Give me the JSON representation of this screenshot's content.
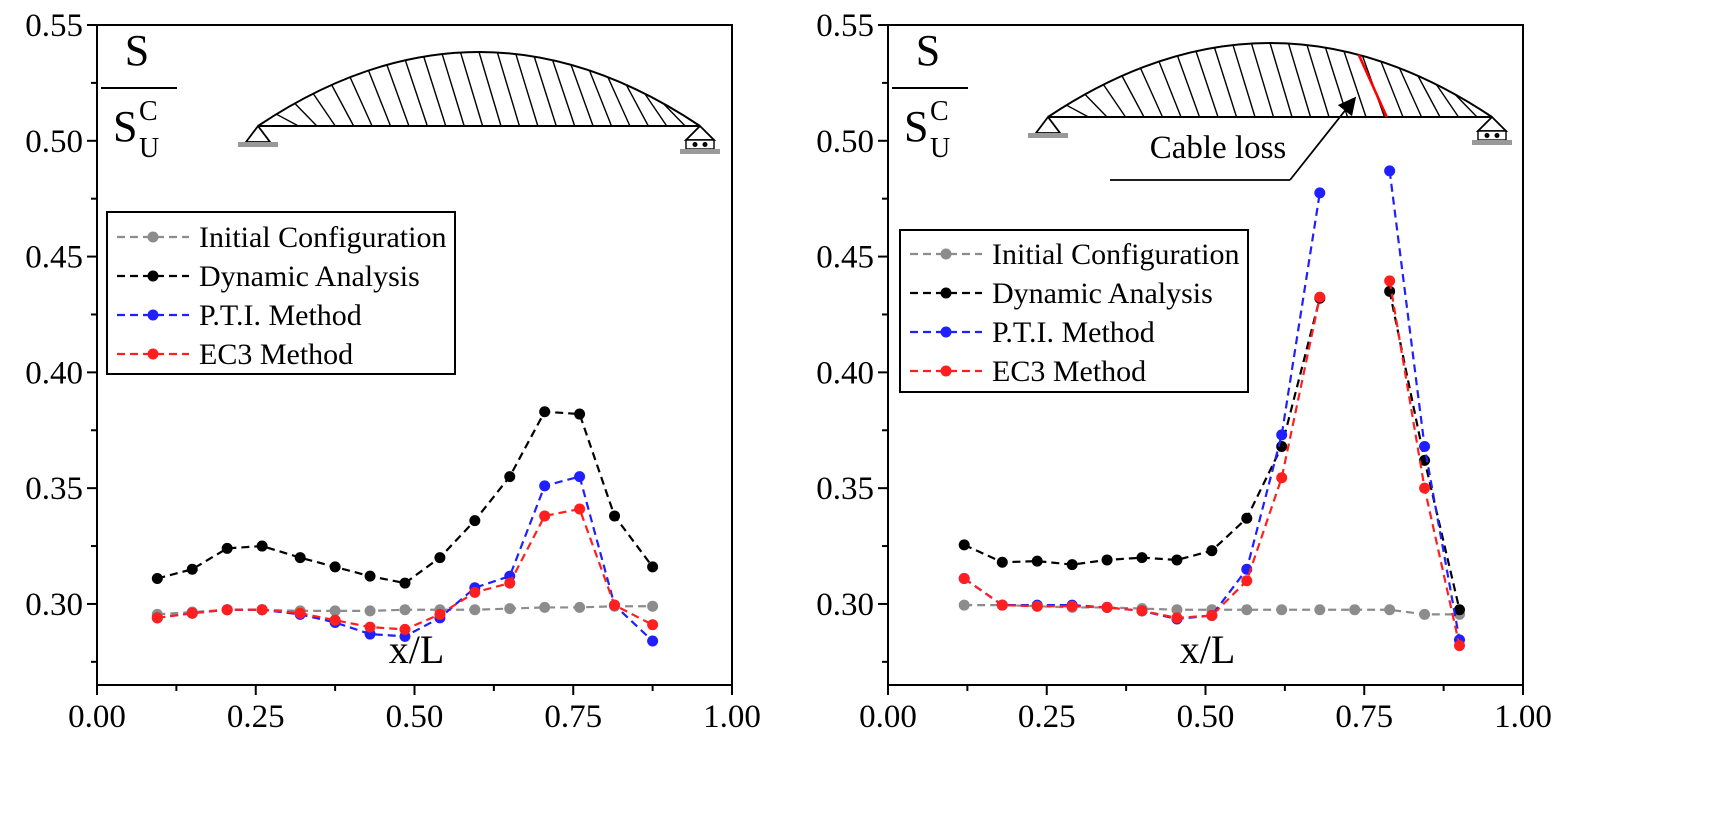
{
  "chart_data": [
    {
      "type": "line",
      "title": "",
      "xlabel": "x/L",
      "ylabel": "S / S_U^C",
      "xlim": [
        0.0,
        1.0
      ],
      "ylim": [
        0.265,
        0.55
      ],
      "x_ticks": [
        "0.00",
        "0.25",
        "0.50",
        "0.75",
        "1.00"
      ],
      "y_ticks": [
        "0.30",
        "0.35",
        "0.40",
        "0.45",
        "0.50",
        "0.55"
      ],
      "y_symbol": {
        "numerator": "S",
        "denominator": "S",
        "sup": "C",
        "sub": "U"
      },
      "legend_position": "upper-left",
      "grid": false,
      "inset": "arch-bridge-schematic",
      "annotation": "",
      "series": [
        {
          "name": "Initial Configuration",
          "color": "#8c8c8c",
          "x": [
            0.095,
            0.15,
            0.205,
            0.26,
            0.32,
            0.375,
            0.43,
            0.485,
            0.54,
            0.595,
            0.65,
            0.705,
            0.76,
            0.815,
            0.875
          ],
          "y": [
            0.2955,
            0.2965,
            0.2975,
            0.2975,
            0.297,
            0.297,
            0.297,
            0.2975,
            0.2975,
            0.2975,
            0.298,
            0.2985,
            0.2985,
            0.299,
            0.299
          ]
        },
        {
          "name": "Dynamic Analysis",
          "color": "#000000",
          "x": [
            0.095,
            0.15,
            0.205,
            0.26,
            0.32,
            0.375,
            0.43,
            0.485,
            0.54,
            0.595,
            0.65,
            0.705,
            0.76,
            0.815,
            0.875
          ],
          "y": [
            0.311,
            0.315,
            0.324,
            0.325,
            0.32,
            0.316,
            0.312,
            0.309,
            0.32,
            0.336,
            0.355,
            0.383,
            0.382,
            0.338,
            0.316
          ]
        },
        {
          "name": "P.T.I.  Method",
          "color": "#1f1fff",
          "x": [
            0.095,
            0.15,
            0.205,
            0.26,
            0.32,
            0.375,
            0.43,
            0.485,
            0.54,
            0.595,
            0.65,
            0.705,
            0.76,
            0.815,
            0.875
          ],
          "y": [
            0.294,
            0.296,
            0.2975,
            0.2975,
            0.2955,
            0.292,
            0.287,
            0.286,
            0.294,
            0.307,
            0.312,
            0.351,
            0.355,
            0.2995,
            0.284
          ]
        },
        {
          "name": "EC3 Method",
          "color": "#ff1f1f",
          "x": [
            0.095,
            0.15,
            0.205,
            0.26,
            0.32,
            0.375,
            0.43,
            0.485,
            0.54,
            0.595,
            0.65,
            0.705,
            0.76,
            0.815,
            0.875
          ],
          "y": [
            0.294,
            0.296,
            0.2975,
            0.2975,
            0.296,
            0.293,
            0.29,
            0.289,
            0.2955,
            0.305,
            0.309,
            0.338,
            0.341,
            0.2995,
            0.291
          ]
        }
      ]
    },
    {
      "type": "line",
      "title": "",
      "xlabel": "x/L",
      "ylabel": "S / S_U^C",
      "xlim": [
        0.0,
        1.0
      ],
      "ylim": [
        0.265,
        0.55
      ],
      "x_ticks": [
        "0.00",
        "0.25",
        "0.50",
        "0.75",
        "1.00"
      ],
      "y_ticks": [
        "0.30",
        "0.35",
        "0.40",
        "0.45",
        "0.50",
        "0.55"
      ],
      "y_symbol": {
        "numerator": "S",
        "denominator": "S",
        "sup": "C",
        "sub": "U"
      },
      "legend_position": "upper-left",
      "grid": false,
      "inset": "arch-bridge-schematic-with-lost-cable",
      "annotation": "Cable loss",
      "series": [
        {
          "name": "Initial Configuration",
          "color": "#8c8c8c",
          "x": [
            0.12,
            0.18,
            0.235,
            0.29,
            0.345,
            0.4,
            0.455,
            0.51,
            0.565,
            0.62,
            0.68,
            0.735,
            0.79,
            0.845,
            0.9
          ],
          "y": [
            0.2995,
            0.2995,
            0.299,
            0.2985,
            0.2985,
            0.298,
            0.2975,
            0.2975,
            0.2975,
            0.2975,
            0.2975,
            0.2975,
            0.2975,
            0.2955,
            0.2955
          ]
        },
        {
          "name": "Dynamic Analysis",
          "color": "#000000",
          "x": [
            0.12,
            0.18,
            0.235,
            0.29,
            0.345,
            0.4,
            0.455,
            0.51,
            0.565,
            0.62,
            0.68,
            null,
            0.79,
            0.845,
            0.9
          ],
          "y": [
            0.3255,
            0.318,
            0.3185,
            0.317,
            0.319,
            0.32,
            0.319,
            0.323,
            0.337,
            0.368,
            0.432,
            null,
            0.435,
            0.362,
            0.2975
          ]
        },
        {
          "name": "P.T.I.  Method",
          "color": "#1f1fff",
          "x": [
            0.12,
            0.18,
            0.235,
            0.29,
            0.345,
            0.4,
            0.455,
            0.51,
            0.565,
            0.62,
            0.68,
            null,
            0.79,
            0.845,
            0.9
          ],
          "y": [
            0.311,
            0.2995,
            0.2995,
            0.2995,
            0.2985,
            0.297,
            0.2935,
            0.295,
            0.315,
            0.373,
            0.4775,
            null,
            0.487,
            0.368,
            0.2845
          ]
        },
        {
          "name": "EC3 Method",
          "color": "#ff1f1f",
          "x": [
            0.12,
            0.18,
            0.235,
            0.29,
            0.345,
            0.4,
            0.455,
            0.51,
            0.565,
            0.62,
            0.68,
            null,
            0.79,
            0.845,
            0.9
          ],
          "y": [
            0.311,
            0.2995,
            0.299,
            0.299,
            0.2985,
            0.297,
            0.294,
            0.295,
            0.31,
            0.3545,
            0.4325,
            null,
            0.4395,
            0.35,
            0.282
          ]
        }
      ]
    }
  ]
}
